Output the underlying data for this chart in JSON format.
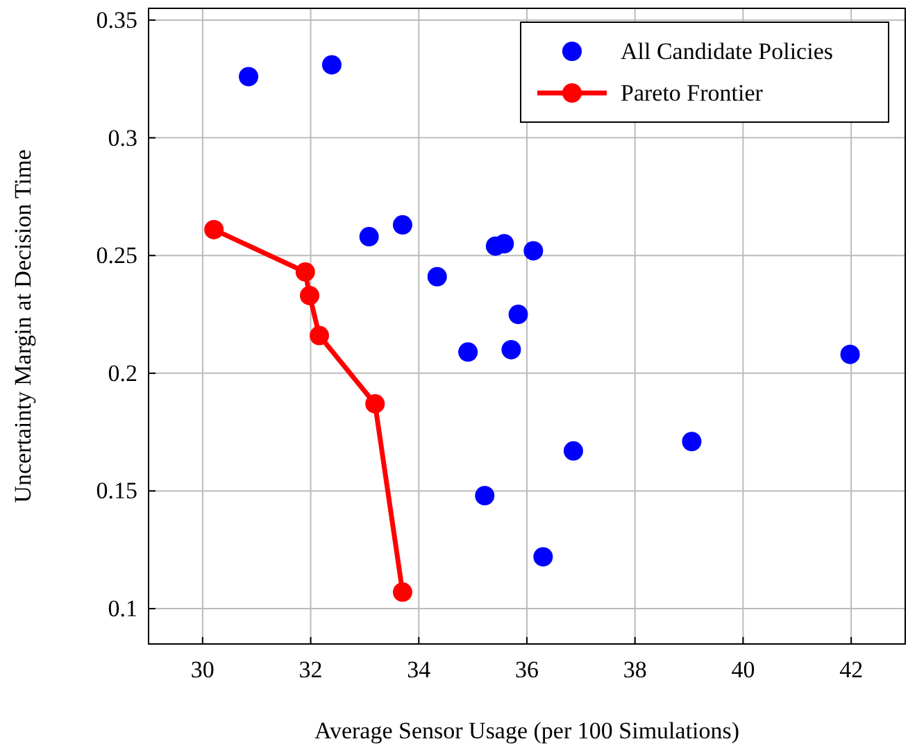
{
  "chart_data": {
    "type": "scatter",
    "xlabel": "Average Sensor Usage (per 100 Simulations)",
    "ylabel": "Uncertainty Margin at Decision Time",
    "xlim": [
      29,
      43
    ],
    "ylim": [
      0.085,
      0.355
    ],
    "xticks": [
      30,
      32,
      34,
      36,
      38,
      40,
      42
    ],
    "yticks": [
      {
        "value": 0.1,
        "label": "0.1"
      },
      {
        "value": 0.15,
        "label": "0.15"
      },
      {
        "value": 0.2,
        "label": "0.2"
      },
      {
        "value": 0.25,
        "label": "0.25"
      },
      {
        "value": 0.3,
        "label": "0.3"
      },
      {
        "value": 0.35,
        "label": "0.35"
      }
    ],
    "grid": true,
    "legend": "top right",
    "marker": "circle",
    "series": [
      {
        "name": "All Candidate Policies",
        "color": "#0000ff",
        "x": [
          30.85,
          32.39,
          33.08,
          33.7,
          34.34,
          34.91,
          35.42,
          35.58,
          36.12,
          35.84,
          35.71,
          35.22,
          36.3,
          36.86,
          39.05,
          41.98
        ],
        "values": [
          0.326,
          0.331,
          0.258,
          0.263,
          0.241,
          0.209,
          0.254,
          0.255,
          0.252,
          0.225,
          0.21,
          0.148,
          0.122,
          0.167,
          0.171,
          0.208
        ]
      },
      {
        "name": "Pareto Frontier",
        "type": "line",
        "color": "#ff0000",
        "line_style": "solid",
        "x": [
          30.21,
          31.9,
          31.98,
          32.16,
          33.19,
          33.7
        ],
        "values": [
          0.261,
          0.243,
          0.233,
          0.216,
          0.187,
          0.107
        ]
      }
    ]
  }
}
